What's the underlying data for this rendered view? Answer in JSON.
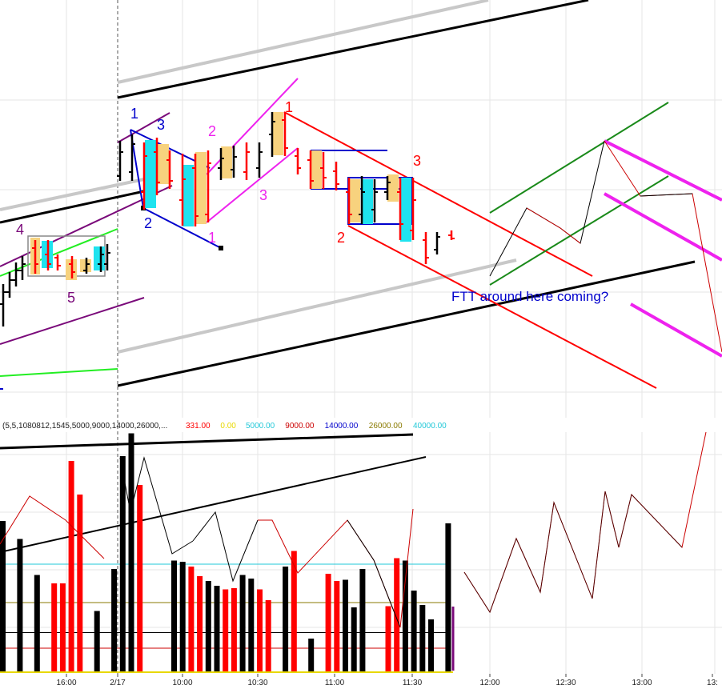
{
  "colors": {
    "up": "#000000",
    "down": "#ff0000",
    "tan": "#f7d27e",
    "cyan": "#1fe3ef",
    "blue": "#0000cc",
    "magenta": "#ee22ee",
    "purple": "#7a0a7a",
    "green": "#1a8a1a",
    "lime": "#22ee22",
    "gray": "#c8c8c8",
    "grid": "#e6e6e6"
  },
  "annotation": "FTT around here coming?",
  "indicator": {
    "params": "(5,5,1080812,1545,5000,9000,14000,26000,...",
    "values": [
      {
        "text": "331.00",
        "color": "#ff0000"
      },
      {
        "text": "0.00",
        "color": "#e8d800"
      },
      {
        "text": "5000.00",
        "color": "#22c8d8"
      },
      {
        "text": "9000.00",
        "color": "#cc0000"
      },
      {
        "text": "14000.00",
        "color": "#0000cc"
      },
      {
        "text": "26000.00",
        "color": "#8a7a00"
      },
      {
        "text": "40000.00",
        "color": "#22c8d8"
      }
    ]
  },
  "chart_data": {
    "type": "bar",
    "x_tick_labels": [
      "16:00",
      "2/17",
      "10:00",
      "10:30",
      "11:00",
      "11:30",
      "12:00",
      "12:30",
      "13:00",
      "13:"
    ],
    "wave_labels": [
      {
        "text": "1",
        "color": "#0000cc"
      },
      {
        "text": "3",
        "color": "#0000cc"
      },
      {
        "text": "2",
        "color": "#0000cc"
      },
      {
        "text": "2",
        "color": "#ee22ee"
      },
      {
        "text": "3",
        "color": "#ee22ee"
      },
      {
        "text": "1",
        "color": "#ee22ee"
      },
      {
        "text": "1",
        "color": "#ff0000"
      },
      {
        "text": "3",
        "color": "#ff0000"
      },
      {
        "text": "2",
        "color": "#ff0000"
      },
      {
        "text": "4",
        "color": "#7a0a7a"
      },
      {
        "text": "5",
        "color": "#7a0a7a"
      }
    ],
    "volume": {
      "values": [
        630,
        0,
        555,
        0,
        405,
        0,
        370,
        370,
        880,
        740,
        0,
        255,
        0,
        430,
        900,
        995,
        780,
        0,
        0,
        0,
        465,
        460,
        440,
        400,
        380,
        360,
        345,
        350,
        405,
        390,
        345,
        300,
        0,
        440,
        505,
        0,
        140,
        0,
        410,
        380,
        385,
        270,
        430,
        0,
        0,
        275,
        475,
        465,
        340,
        280,
        220,
        0,
        620
      ],
      "colors": [
        "up",
        "up",
        "up",
        "up",
        "up",
        "up",
        "down",
        "down",
        "down",
        "down",
        "up",
        "up",
        "up",
        "up",
        "up",
        "up",
        "down",
        "down",
        "down",
        "down",
        "up",
        "up",
        "down",
        "down",
        "up",
        "up",
        "down",
        "down",
        "up",
        "up",
        "down",
        "down",
        "up",
        "up",
        "down",
        "down",
        "up",
        "up",
        "down",
        "down",
        "up",
        "up",
        "up",
        "up",
        "down",
        "down",
        "down",
        "up",
        "up",
        "up",
        "up",
        "down",
        "up"
      ],
      "reference_levels": [
        {
          "value": 450,
          "color": "#22c8d8"
        },
        {
          "value": 290,
          "color": "#8a7a00"
        },
        {
          "value": 165,
          "color": "#000000"
        },
        {
          "value": 100,
          "color": "#cc0000"
        }
      ]
    }
  }
}
